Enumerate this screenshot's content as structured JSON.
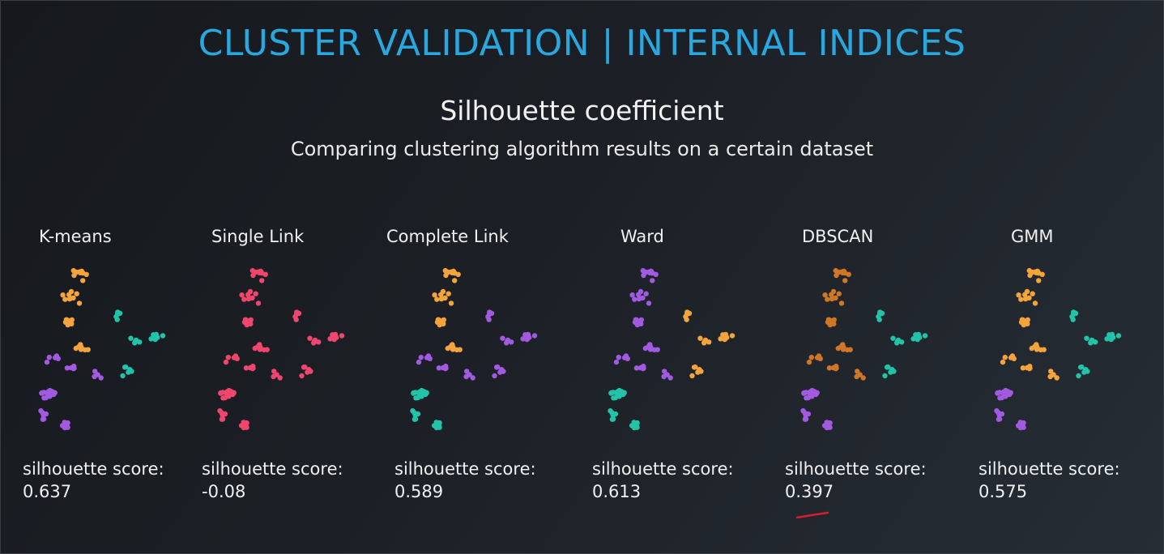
{
  "slide": {
    "title": "CLUSTER VALIDATION | INTERNAL INDICES",
    "subtitle": "Silhouette coefficient",
    "description": "Comparing clustering algorithm results on a certain dataset"
  },
  "colors": {
    "title": "#29a8df",
    "orange": "#f5a33b",
    "purple": "#a25ae0",
    "teal": "#22c4a9",
    "pink": "#f0466e",
    "dark_orange": "#cf7726",
    "annotation": "#d9202a"
  },
  "panels": [
    {
      "label": "K-means",
      "score_label": "silhouette score:",
      "score": "0.637",
      "colors": [
        "orange",
        "purple",
        "teal",
        "purple"
      ]
    },
    {
      "label": "Single Link",
      "score_label": "silhouette score:",
      "score": "-0.08",
      "colors": [
        "pink",
        "pink",
        "pink",
        "pink"
      ]
    },
    {
      "label": "Complete Link",
      "score_label": "silhouette score:",
      "score": "0.589",
      "colors": [
        "orange",
        "purple",
        "purple",
        "teal"
      ]
    },
    {
      "label": "Ward",
      "score_label": "silhouette score:",
      "score": "0.613",
      "colors": [
        "purple",
        "purple",
        "orange",
        "teal"
      ]
    },
    {
      "label": "DBSCAN",
      "score_label": "silhouette score:",
      "score": "0.397",
      "colors": [
        "dark_orange",
        "dark_orange",
        "teal",
        "purple"
      ]
    },
    {
      "label": "GMM",
      "score_label": "silhouette score:",
      "score": "0.575",
      "colors": [
        "orange",
        "orange",
        "teal",
        "purple"
      ]
    }
  ]
}
